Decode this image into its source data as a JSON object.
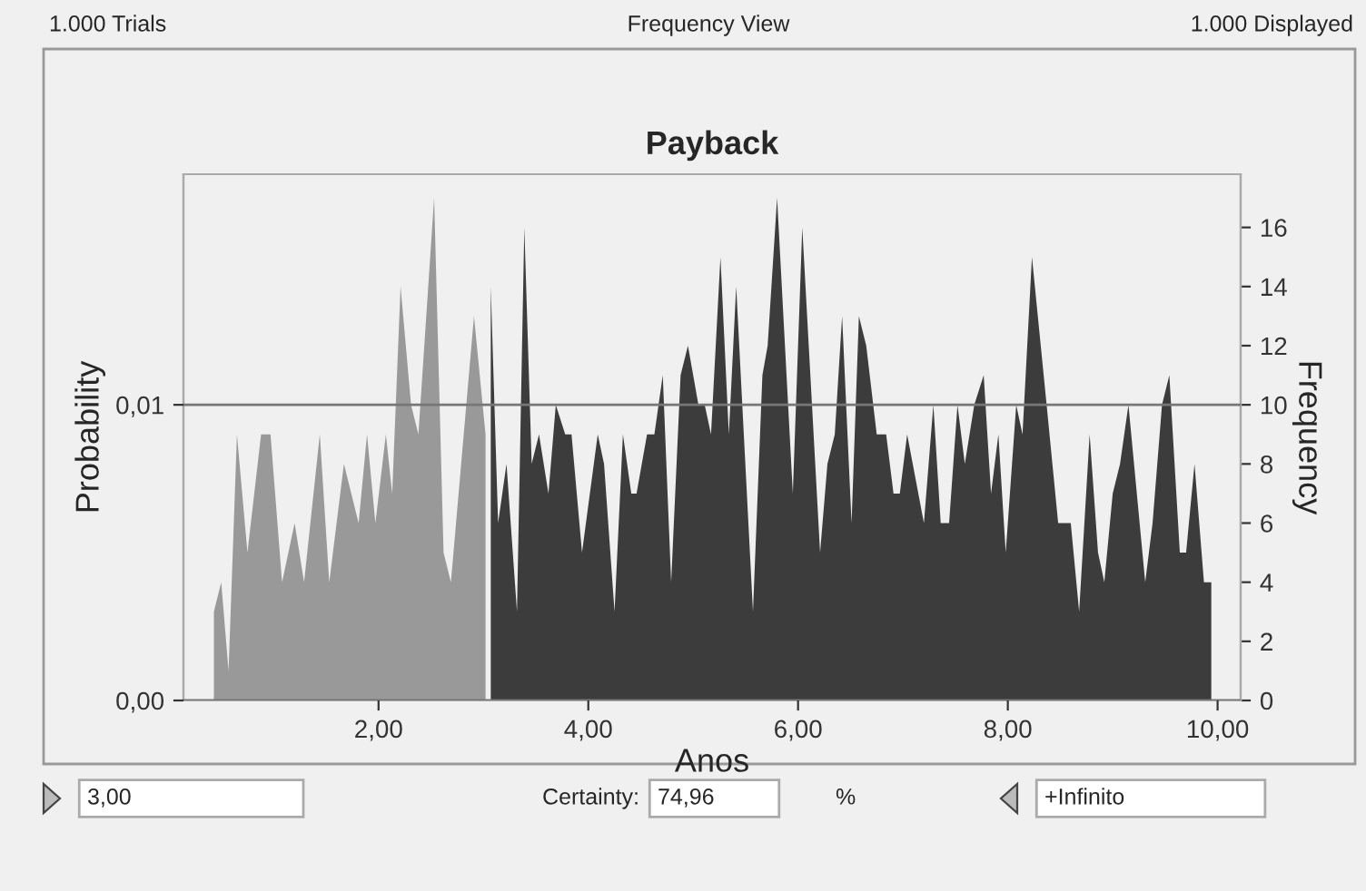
{
  "chart_data": {
    "type": "area",
    "title": "Payback",
    "xlabel": "Anos",
    "ylabel": "Probability",
    "y2label": "Frequency",
    "annotations": [
      "1.000 Trials",
      "Frequency View",
      "1.000 Displayed",
      "3,00",
      "Certainty:",
      "74,96",
      "%",
      "+Infinito"
    ],
    "series": [
      {
        "color": "#999999",
        "axis": "y2",
        "x": [
          0.43,
          0.5,
          0.57,
          0.65,
          0.75,
          0.88,
          0.97,
          1.08,
          1.2,
          1.29,
          1.44,
          1.53,
          1.67,
          1.81,
          1.89,
          1.97,
          2.07,
          2.13,
          2.21,
          2.31,
          2.38,
          2.53,
          2.62,
          2.69,
          2.91,
          3.02
        ],
        "values": [
          3,
          4,
          1,
          9,
          5,
          9,
          9,
          4,
          6,
          4,
          9,
          4,
          8,
          6,
          9,
          6,
          9,
          7,
          14,
          10,
          9,
          17,
          5,
          4,
          13,
          9
        ]
      },
      {
        "color": "#3c3c3c",
        "axis": "y2",
        "x": [
          3.07,
          3.14,
          3.22,
          3.32,
          3.39,
          3.46,
          3.53,
          3.62,
          3.69,
          3.78,
          3.84,
          3.94,
          4.09,
          4.15,
          4.25,
          4.33,
          4.41,
          4.46,
          4.56,
          4.63,
          4.71,
          4.79,
          4.88,
          4.95,
          5.05,
          5.11,
          5.17,
          5.26,
          5.34,
          5.41,
          5.57,
          5.66,
          5.71,
          5.8,
          5.95,
          6.04,
          6.21,
          6.28,
          6.35,
          6.42,
          6.51,
          6.58,
          6.65,
          6.75,
          6.84,
          6.91,
          6.97,
          7.04,
          7.2,
          7.29,
          7.36,
          7.44,
          7.52,
          7.59,
          7.68,
          7.77,
          7.84,
          7.91,
          7.98,
          8.08,
          8.14,
          8.23,
          8.37,
          8.48,
          8.6,
          8.68,
          8.78,
          8.86,
          8.92,
          9.0,
          9.07,
          9.15,
          9.31,
          9.38,
          9.47,
          9.54,
          9.64,
          9.7,
          9.78,
          9.87,
          9.94
        ],
        "values": [
          14,
          6,
          8,
          3,
          16,
          8,
          9,
          7,
          10,
          9,
          9,
          5,
          9,
          8,
          3,
          9,
          7,
          7,
          9,
          9,
          11,
          4,
          11,
          12,
          10,
          10,
          9,
          15,
          9,
          14,
          3,
          11,
          12,
          17,
          7,
          16,
          5,
          8,
          9,
          13,
          6,
          13,
          12,
          9,
          9,
          7,
          7,
          9,
          6,
          10,
          6,
          6,
          10,
          8,
          10,
          11,
          7,
          9,
          5,
          10,
          9,
          15,
          10,
          6,
          6,
          3,
          9,
          5,
          4,
          7,
          8,
          10,
          4,
          6,
          10,
          11,
          5,
          5,
          8,
          4,
          4
        ]
      }
    ],
    "xlim": [
      0.14,
      10.22
    ],
    "xticks": [
      {
        "value": 2,
        "label": "2,00"
      },
      {
        "value": 4,
        "label": "4,00"
      },
      {
        "value": 6,
        "label": "6,00"
      },
      {
        "value": 8,
        "label": "8,00"
      },
      {
        "value": 10,
        "label": "10,00"
      }
    ],
    "ylim": [
      0,
      0.0178
    ],
    "yticks": [
      {
        "value": 0,
        "label": "0,00"
      },
      {
        "value": 0.01,
        "label": "0,01"
      }
    ],
    "y2lim": [
      0,
      17.8
    ],
    "y2ticks": [
      0,
      2,
      4,
      6,
      8,
      10,
      12,
      14,
      16
    ],
    "grid": "y"
  }
}
